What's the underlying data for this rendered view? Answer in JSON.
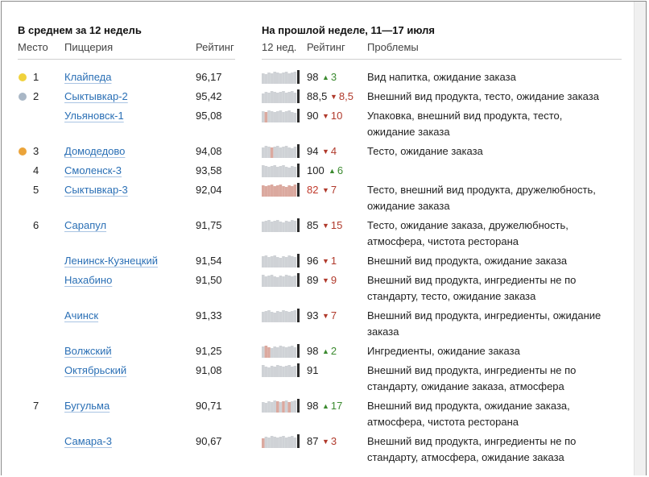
{
  "left_title": "В среднем за 12 недель",
  "right_title": "На прошлой неделе, 11—17 июля",
  "headers": {
    "place": "Место",
    "pizzeria": "Пиццерия",
    "rating": "Рейтинг",
    "weeks": "12 нед.",
    "week_rating": "Рейтинг",
    "problems": "Проблемы"
  },
  "medal_colors": {
    "gold": "#f0d23c",
    "silver": "#a9b7c6",
    "bronze": "#eba43a"
  },
  "rows": [
    {
      "place": "1",
      "medal": "gold",
      "name": "Клайпеда",
      "avg": "96,17",
      "rating": "98",
      "delta_dir": "up",
      "delta": "3",
      "problems": "Вид напитка, ожидание заказа",
      "low_weeks": []
    },
    {
      "place": "2",
      "medal": "silver",
      "name": "Сыктывкар-2",
      "avg": "95,42",
      "rating": "88,5",
      "delta_dir": "down",
      "delta": "8,5",
      "problems": "Внешний вид продукта, тесто, ожидание заказа",
      "low_weeks": []
    },
    {
      "place": "",
      "medal": "",
      "name": "Ульяновск-1",
      "avg": "95,08",
      "rating": "90",
      "delta_dir": "down",
      "delta": "10",
      "problems": "Упаковка, внешний вид продукта, тесто, ожидание заказа",
      "low_weeks": [
        1
      ]
    },
    {
      "place": "3",
      "medal": "bronze",
      "name": "Домодедово",
      "avg": "94,08",
      "rating": "94",
      "delta_dir": "down",
      "delta": "4",
      "problems": "Тесто, ожидание заказа",
      "low_weeks": [
        3
      ]
    },
    {
      "place": "4",
      "medal": "",
      "name": "Смоленск-3",
      "avg": "93,58",
      "rating": "100",
      "delta_dir": "up",
      "delta": "6",
      "problems": "",
      "low_weeks": []
    },
    {
      "place": "5",
      "medal": "",
      "name": "Сыктывкар-3",
      "avg": "92,04",
      "rating": "82",
      "rating_bad": true,
      "delta_dir": "down",
      "delta": "7",
      "problems": "Тесто, внешний вид продукта, дружелюбность, ожидание заказа",
      "low_weeks": [
        0,
        1,
        2,
        3,
        4,
        5,
        6,
        7,
        8,
        9,
        10,
        11
      ]
    },
    {
      "place": "6",
      "medal": "",
      "name": "Сарапул",
      "avg": "91,75",
      "rating": "85",
      "delta_dir": "down",
      "delta": "15",
      "problems": "Тесто, ожидание заказа, дружелюбность, атмосфера, чистота ресторана",
      "low_weeks": []
    },
    {
      "place": "",
      "medal": "",
      "name": "Ленинск-Кузнецкий",
      "avg": "91,54",
      "rating": "96",
      "delta_dir": "down",
      "delta": "1",
      "problems": "Внешний вид продукта, ожидание заказа",
      "low_weeks": []
    },
    {
      "place": "",
      "medal": "",
      "name": "Нахабино",
      "avg": "91,50",
      "rating": "89",
      "delta_dir": "down",
      "delta": "9",
      "problems": "Внешний вид продукта, ингредиенты не по стандарту, тесто, ожидание заказа",
      "low_weeks": []
    },
    {
      "place": "",
      "medal": "",
      "name": "Ачинск",
      "avg": "91,33",
      "rating": "93",
      "delta_dir": "down",
      "delta": "7",
      "problems": "Внешний вид продукта, ингредиенты, ожидание заказа",
      "low_weeks": []
    },
    {
      "place": "",
      "medal": "",
      "name": "Волжский",
      "avg": "91,25",
      "rating": "98",
      "delta_dir": "up",
      "delta": "2",
      "problems": "Ингредиенты, ожидание заказа",
      "low_weeks": [
        1,
        2
      ]
    },
    {
      "place": "",
      "medal": "",
      "name": "Октябрьский",
      "avg": "91,08",
      "rating": "91",
      "delta_dir": "",
      "delta": "",
      "problems": "Внешний вид продукта, ингредиенты не по стандарту, ожидание заказа, атмосфера",
      "low_weeks": []
    },
    {
      "place": "7",
      "medal": "",
      "name": "Бугульма",
      "avg": "90,71",
      "rating": "98",
      "delta_dir": "up",
      "delta": "17",
      "problems": "Внешний вид продукта, ожидание заказа, атмосфера, чистота ресторана",
      "low_weeks": [
        5,
        7,
        9
      ]
    },
    {
      "place": "",
      "medal": "",
      "name": "Самара-3",
      "avg": "90,67",
      "rating": "87",
      "delta_dir": "down",
      "delta": "3",
      "problems": "Внешний вид продукта, ингредиенты не по стандарту, атмосфера, ожидание заказа",
      "low_weeks": [
        0
      ]
    }
  ],
  "colors": {
    "bar": "#cfd2d6",
    "bar_low": "#dba99f",
    "bar_current": "#2b2b2b",
    "link": "#2a6fb5"
  }
}
